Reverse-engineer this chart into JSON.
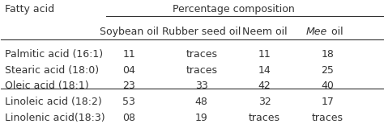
{
  "title": "Percentage composition",
  "col0_header": "Fatty acid",
  "col_headers": [
    "Soybean oil",
    "Rubber seed oil",
    "Neem oil",
    "Mee oil"
  ],
  "rows": [
    [
      "Palmitic acid (16:1)",
      "11",
      "traces",
      "11",
      "18"
    ],
    [
      "Stearic acid (18:0)",
      "04",
      "traces",
      "14",
      "25"
    ],
    [
      "Oleic acid (18:1)",
      "23",
      "33",
      "42",
      "40"
    ],
    [
      "Linoleic acid (18:2)",
      "53",
      "48",
      "32",
      "17"
    ],
    [
      "Linolenic acid(18:3)",
      "08",
      "19",
      "traces",
      "traces"
    ]
  ],
  "background_color": "#ffffff",
  "text_color": "#333333",
  "font_size": 9
}
